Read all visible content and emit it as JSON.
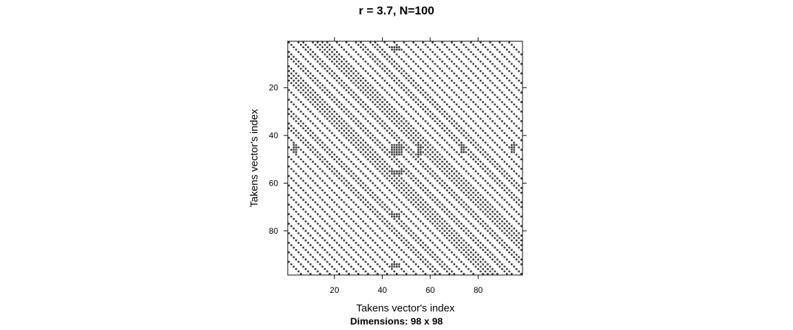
{
  "chart_data": {
    "type": "heatmap",
    "title": "r = 3.7, N=100",
    "xlabel": "Takens vector's index",
    "ylabel": "Takens vector's index",
    "subtitle": "Dimensions: 98 x 98",
    "xlim": [
      0.5,
      98.5
    ],
    "ylim": [
      0.5,
      98.5
    ],
    "y_reversed": true,
    "x_ticks": [
      20,
      40,
      60,
      80
    ],
    "y_ticks": [
      20,
      40,
      60,
      80
    ],
    "colors": {
      "recurrence": "#3c3c3c",
      "background": "#ffffff",
      "frame": "#000000"
    },
    "recurrence_matrix": {
      "size": 98,
      "diagonal_offsets": [
        0,
        4,
        6,
        10,
        12,
        14,
        16,
        20,
        24,
        28,
        30,
        34,
        36,
        40,
        44,
        48,
        52,
        56,
        60,
        64,
        68,
        72,
        76,
        80,
        84,
        88,
        92
      ],
      "blocks": [
        {
          "rows": [
            44,
            48
          ],
          "cols": [
            44,
            48
          ]
        },
        {
          "rows": [
            44,
            48
          ],
          "cols": [
            55,
            56
          ]
        },
        {
          "rows": [
            55,
            56
          ],
          "cols": [
            44,
            48
          ]
        },
        {
          "rows": [
            44,
            47
          ],
          "cols": [
            3,
            4
          ]
        },
        {
          "rows": [
            3,
            4
          ],
          "cols": [
            44,
            47
          ]
        },
        {
          "rows": [
            44,
            47
          ],
          "cols": [
            73,
            74
          ]
        },
        {
          "rows": [
            73,
            74
          ],
          "cols": [
            44,
            47
          ]
        },
        {
          "rows": [
            44,
            47
          ],
          "cols": [
            94,
            95
          ]
        },
        {
          "rows": [
            94,
            95
          ],
          "cols": [
            44,
            47
          ]
        }
      ]
    }
  }
}
